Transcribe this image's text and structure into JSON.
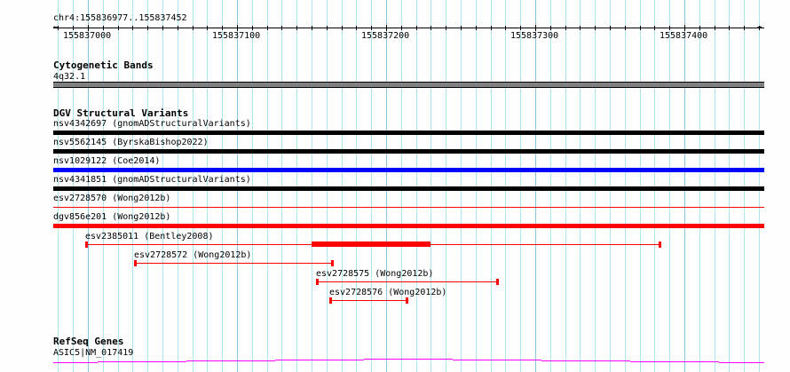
{
  "view": {
    "chrom": "chr4",
    "start": 155836977,
    "end": 155837452,
    "location_label": "chr4:155836977..155837452"
  },
  "ruler": {
    "tick_labels": [
      "155837000",
      "155837100",
      "155837200",
      "155837300",
      "155837400"
    ],
    "tick_values": [
      155837000,
      155837100,
      155837200,
      155837300,
      155837400
    ]
  },
  "tracks": {
    "cyto": {
      "title": "Cytogenetic Bands",
      "feature": {
        "label": "4q32.1",
        "color": "#808080"
      }
    },
    "dgv": {
      "title": "DGV Structural Variants",
      "full_features": [
        {
          "label": "nsv4342697 (gnomADStructuralVariants)",
          "color": "#000000",
          "style": "thick"
        },
        {
          "label": "nsv5562145 (ByrskaBishop2022)",
          "color": "#000000",
          "style": "thick"
        },
        {
          "label": "nsv1029122 (Coe2014)",
          "color": "#0000ff",
          "style": "thick"
        },
        {
          "label": "nsv4341851 (gnomADStructuralVariants)",
          "color": "#000000",
          "style": "thick"
        },
        {
          "label": "esv2728570 (Wong2012b)",
          "color": "#ff0000",
          "style": "thin"
        },
        {
          "label": "dgv856e201 (Wong2012b)",
          "color": "#ff0000",
          "style": "thick"
        }
      ],
      "partial_features": [
        {
          "label": "esv2385011 (Bentley2008)",
          "start": 155836998,
          "end": 155837384,
          "thick_start": 155837150,
          "thick_end": 155837230,
          "color": "#ff0000"
        },
        {
          "label": "esv2728572 (Wong2012b)",
          "start": 155837031,
          "end": 155837164,
          "color": "#ff0000"
        },
        {
          "label": "esv2728575 (Wong2012b)",
          "start": 155837153,
          "end": 155837275,
          "color": "#ff0000"
        },
        {
          "label": "esv2728576 (Wong2012b)",
          "start": 155837162,
          "end": 155837214,
          "color": "#ff0000"
        }
      ]
    },
    "refseq": {
      "title": "RefSeq Genes",
      "feature": {
        "label": "ASIC5|NM_017419",
        "color": "#ff00ff"
      }
    }
  }
}
